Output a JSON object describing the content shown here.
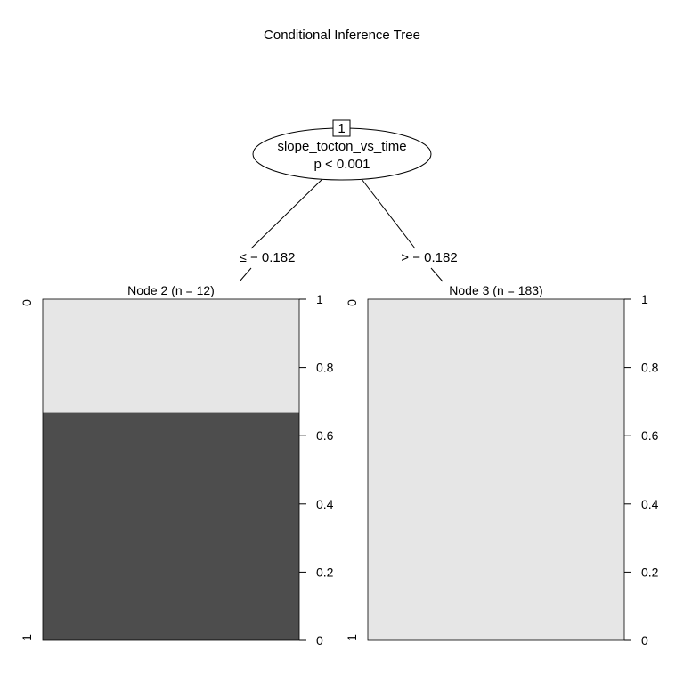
{
  "title": "Conditional Inference Tree",
  "colors": {
    "background": "#ffffff",
    "line": "#000000",
    "bar_dark": "#4d4d4d",
    "bar_light": "#e6e6e6"
  },
  "root": {
    "id": "1",
    "variable": "slope_tocton_vs_time",
    "p_value": "p < 0.001"
  },
  "edges": {
    "left": "≤ − 0.182",
    "right": "> − 0.182"
  },
  "axis": {
    "left_top": "0",
    "left_bottom": "1",
    "ticks": [
      "0",
      "0.2",
      "0.4",
      "0.6",
      "0.8",
      "1"
    ]
  },
  "chart_data": [
    {
      "type": "bar",
      "title": "Node 2 (n = 12)",
      "categories": [
        "1",
        "0"
      ],
      "values": [
        0.667,
        0.333
      ],
      "ylim": [
        0,
        1
      ]
    },
    {
      "type": "bar",
      "title": "Node 3 (n = 183)",
      "categories": [
        "1",
        "0"
      ],
      "values": [
        0.0,
        1.0
      ],
      "ylim": [
        0,
        1
      ]
    }
  ]
}
